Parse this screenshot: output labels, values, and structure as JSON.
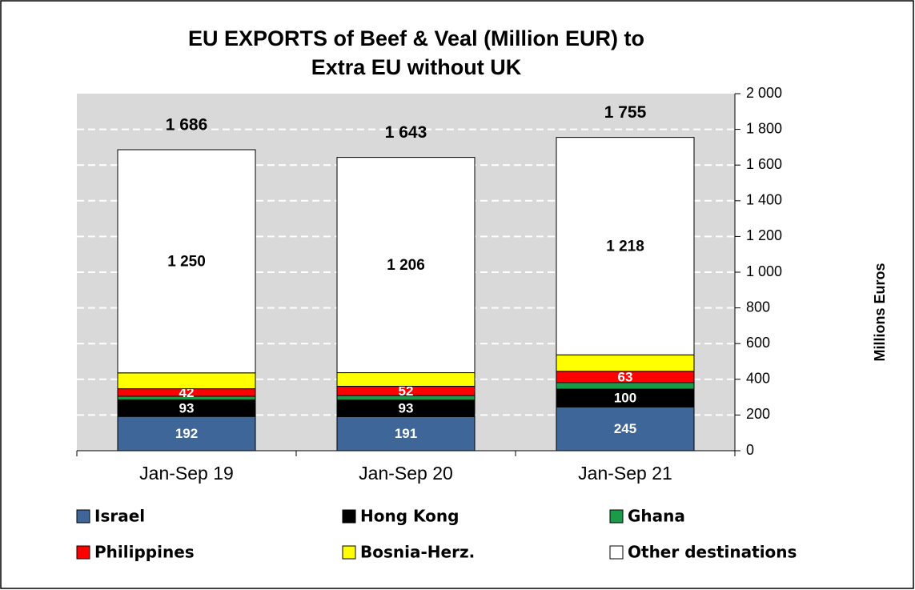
{
  "chart_data": {
    "type": "stacked-bar",
    "title": "EU EXPORTS of Beef & Veal (Million EUR) to Extra EU without UK",
    "y_axis_label": "Millions Euros",
    "categories": [
      "Jan-Sep 19",
      "Jan-Sep 20",
      "Jan-Sep 21"
    ],
    "series": [
      {
        "name": "Israel",
        "color": "#3f6698",
        "values": [
          192,
          191,
          245
        ],
        "label_color": "#ffffff"
      },
      {
        "name": "Hong Kong",
        "color": "#000000",
        "values": [
          93,
          93,
          100
        ],
        "label_color": "#ffffff"
      },
      {
        "name": "Ghana",
        "color": "#1a9b4a",
        "values": [
          20,
          25,
          37
        ]
      },
      {
        "name": "Philippines",
        "color": "#ff0000",
        "values": [
          42,
          52,
          63
        ],
        "label_color": "#ffffff"
      },
      {
        "name": "Bosnia-Herz.",
        "color": "#ffff00",
        "values": [
          89,
          76,
          92
        ]
      },
      {
        "name": "Other destinations",
        "color": "#ffffff",
        "values": [
          1250,
          1206,
          1218
        ],
        "value_labels": [
          "1 250",
          "1 206",
          "1 218"
        ],
        "label_color": "#000000"
      }
    ],
    "totals": [
      1686,
      1643,
      1755
    ],
    "total_labels": [
      "1 686",
      "1 643",
      "1 755"
    ],
    "ylim": [
      0,
      2000
    ],
    "yticks": [
      0,
      200,
      400,
      600,
      800,
      {
        "value": 1000,
        "label": "1 000"
      },
      {
        "value": 1200,
        "label": "1 200"
      },
      {
        "value": 1400,
        "label": "1 400"
      },
      {
        "value": 1600,
        "label": "1 600"
      },
      {
        "value": 1800,
        "label": "1 800"
      },
      {
        "value": 2000,
        "label": "2 000"
      }
    ],
    "grid": true
  }
}
